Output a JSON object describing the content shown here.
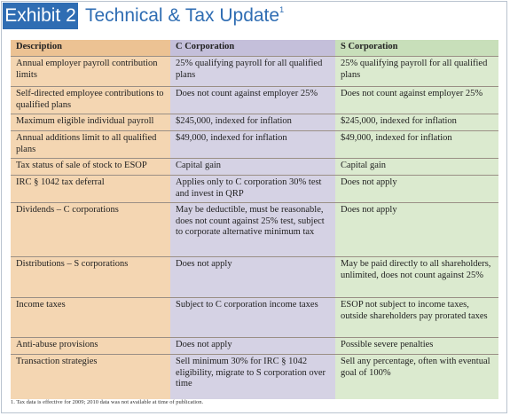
{
  "header": {
    "label": "Exhibit 2",
    "title": "Technical & Tax Update",
    "footnote_ref": "1"
  },
  "table": {
    "columns": [
      "Description",
      "C Corporation",
      "S Corporation"
    ],
    "rows": [
      [
        "Annual employer payroll contribution limits",
        "25% qualifying payroll for all qualified plans",
        "25% qualifying payroll for all qualified plans"
      ],
      [
        "Self-directed employee contributions to qualified plans",
        "Does not count against employer 25%",
        "Does not count against employer 25%"
      ],
      [
        "Maximum eligible individual payroll",
        "$245,000, indexed for inflation",
        "$245,000, indexed for inflation"
      ],
      [
        "Annual additions limit to all qualified plans",
        "$49,000, indexed for inflation",
        "$49,000, indexed for inflation"
      ],
      [
        "Tax status of sale of stock to ESOP",
        "Capital gain",
        "Capital gain"
      ],
      [
        "IRC § 1042 tax deferral",
        "Applies only to C corporation 30% test and invest in QRP",
        "Does not apply"
      ],
      [
        "Dividends – C corporations",
        "May be deductible, must be reasonable, does not count against 25% test, subject to corporate alternative minimum tax",
        "Does not apply"
      ],
      [
        "Distributions – S corporations",
        "Does not apply",
        "May be paid directly to all shareholders, unlimited, does not count against 25%"
      ],
      [
        "Income taxes",
        "Subject to C corporation income taxes",
        "ESOP not subject to income taxes, outside shareholders pay prorated taxes"
      ],
      [
        "Anti-abuse provisions",
        "Does not apply",
        "Possible severe penalties"
      ],
      [
        "Transaction strategies",
        "Sell minimum 30% for IRC § 1042 eligibility, migrate to S corporation over time",
        "Sell any percentage, often with eventual goal of 100%"
      ]
    ]
  },
  "footnote": "1. Tax data is effective for 2009; 2010 data was not available at time of publication."
}
